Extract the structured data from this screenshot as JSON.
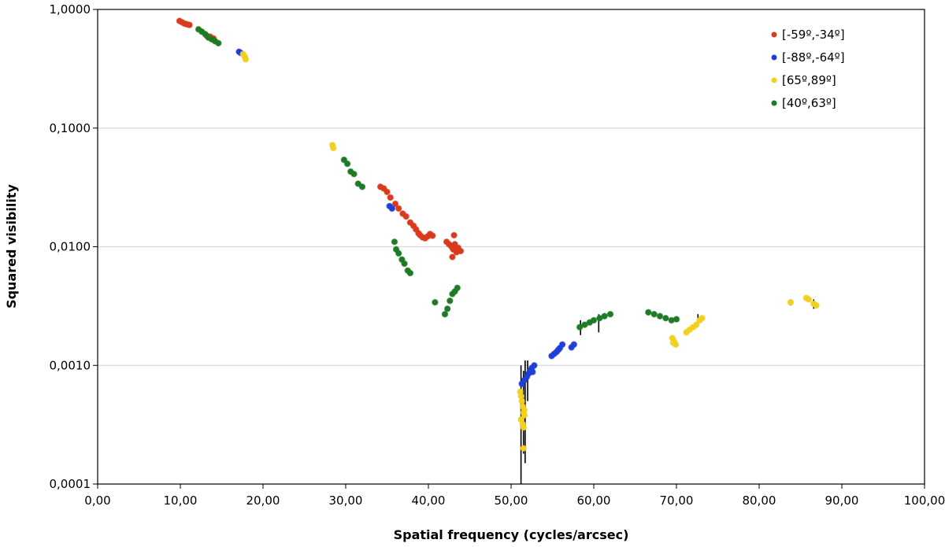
{
  "chart_data": {
    "type": "scatter",
    "title": "",
    "xlabel": "Spatial frequency (cycles/arcsec)",
    "ylabel": "Squared visibility",
    "xlim": [
      0,
      100
    ],
    "ylim": [
      0.0001,
      1
    ],
    "yscale": "log",
    "grid": "horizontal",
    "legend_position": "top-right",
    "x_tick_labels": [
      "0,00",
      "10,00",
      "20,00",
      "30,00",
      "40,00",
      "50,00",
      "60,00",
      "70,00",
      "80,00",
      "90,00",
      "100,00"
    ],
    "y_tick_labels": [
      "1,0000",
      "0,1000",
      "0,0100",
      "0,0010",
      "0,0001"
    ],
    "series": [
      {
        "name": "[-59º,-34º]",
        "color": "#d93a1e",
        "points": [
          [
            9.9,
            0.8
          ],
          [
            10.2,
            0.78
          ],
          [
            10.5,
            0.76
          ],
          [
            10.8,
            0.75
          ],
          [
            11.1,
            0.74
          ],
          [
            13.2,
            0.6
          ],
          [
            13.6,
            0.59
          ],
          [
            14.0,
            0.57
          ],
          [
            34.2,
            0.032
          ],
          [
            34.6,
            0.031
          ],
          [
            35.0,
            0.029
          ],
          [
            35.4,
            0.026
          ],
          [
            36.0,
            0.023
          ],
          [
            36.4,
            0.021
          ],
          [
            36.9,
            0.019
          ],
          [
            37.3,
            0.018
          ],
          [
            37.8,
            0.016
          ],
          [
            38.2,
            0.015
          ],
          [
            38.5,
            0.014
          ],
          [
            38.8,
            0.013
          ],
          [
            39.0,
            0.0125
          ],
          [
            39.3,
            0.012
          ],
          [
            39.6,
            0.0118
          ],
          [
            39.9,
            0.0122
          ],
          [
            40.2,
            0.0128
          ],
          [
            40.5,
            0.0124
          ],
          [
            42.2,
            0.011
          ],
          [
            42.5,
            0.0105
          ],
          [
            42.8,
            0.01
          ],
          [
            43.0,
            0.0095
          ],
          [
            43.2,
            0.0105
          ],
          [
            43.4,
            0.009
          ],
          [
            43.6,
            0.0098
          ],
          [
            43.9,
            0.0092
          ],
          [
            43.1,
            0.0125
          ],
          [
            42.9,
            0.0082
          ]
        ]
      },
      {
        "name": "[-88º,-64º]",
        "color": "#1f3fd6",
        "points": [
          [
            17.1,
            0.44
          ],
          [
            17.3,
            0.43
          ],
          [
            35.3,
            0.022
          ],
          [
            35.6,
            0.021
          ],
          [
            51.3,
            0.0007
          ],
          [
            51.6,
            0.00075
          ],
          [
            51.9,
            0.0008
          ],
          [
            52.1,
            0.00085
          ],
          [
            52.3,
            0.0009
          ],
          [
            52.5,
            0.00095
          ],
          [
            52.8,
            0.001
          ],
          [
            52.6,
            0.00088
          ],
          [
            54.9,
            0.0012
          ],
          [
            55.2,
            0.00125
          ],
          [
            55.5,
            0.0013
          ],
          [
            55.9,
            0.0014
          ],
          [
            56.2,
            0.0015
          ],
          [
            55.7,
            0.00135
          ],
          [
            57.3,
            0.00142
          ],
          [
            57.6,
            0.0015
          ]
        ]
      },
      {
        "name": "[65º,89º]",
        "color": "#f0d020",
        "points": [
          [
            17.6,
            0.42
          ],
          [
            17.8,
            0.4
          ],
          [
            17.9,
            0.38
          ],
          [
            28.4,
            0.072
          ],
          [
            28.5,
            0.068
          ],
          [
            51.1,
            0.0006
          ],
          [
            51.2,
            0.00055
          ],
          [
            51.3,
            0.0005
          ],
          [
            51.4,
            0.00045
          ],
          [
            51.5,
            0.0004
          ],
          [
            51.6,
            0.00038
          ],
          [
            51.2,
            0.00035
          ],
          [
            51.5,
            0.0003
          ],
          [
            51.4,
            0.00032
          ],
          [
            51.6,
            0.00042
          ],
          [
            51.5,
            0.0002
          ],
          [
            69.5,
            0.0017
          ],
          [
            69.7,
            0.0016
          ],
          [
            69.9,
            0.0015
          ],
          [
            69.6,
            0.00155
          ],
          [
            71.2,
            0.0019
          ],
          [
            71.6,
            0.002
          ],
          [
            72.0,
            0.0021
          ],
          [
            72.4,
            0.0022
          ],
          [
            72.8,
            0.0024
          ],
          [
            73.1,
            0.0025
          ],
          [
            83.8,
            0.0034
          ],
          [
            85.7,
            0.0037
          ],
          [
            86.0,
            0.0036
          ],
          [
            86.6,
            0.0033
          ],
          [
            86.9,
            0.0032
          ]
        ]
      },
      {
        "name": "[40º,63º]",
        "color": "#1e7a25",
        "points": [
          [
            12.2,
            0.68
          ],
          [
            12.6,
            0.65
          ],
          [
            13.0,
            0.62
          ],
          [
            13.4,
            0.58
          ],
          [
            13.8,
            0.56
          ],
          [
            14.2,
            0.54
          ],
          [
            14.6,
            0.52
          ],
          [
            29.8,
            0.054
          ],
          [
            30.2,
            0.05
          ],
          [
            30.6,
            0.043
          ],
          [
            31.0,
            0.041
          ],
          [
            31.5,
            0.034
          ],
          [
            32.0,
            0.032
          ],
          [
            35.9,
            0.011
          ],
          [
            36.1,
            0.0095
          ],
          [
            36.4,
            0.0088
          ],
          [
            36.8,
            0.0078
          ],
          [
            37.1,
            0.0072
          ],
          [
            37.5,
            0.0063
          ],
          [
            37.8,
            0.006
          ],
          [
            40.8,
            0.0034
          ],
          [
            42.0,
            0.0027
          ],
          [
            42.3,
            0.003
          ],
          [
            42.6,
            0.0035
          ],
          [
            42.9,
            0.004
          ],
          [
            43.2,
            0.0042
          ],
          [
            43.5,
            0.0045
          ],
          [
            58.3,
            0.0021
          ],
          [
            58.9,
            0.0022
          ],
          [
            59.5,
            0.0023
          ],
          [
            60.0,
            0.0024
          ],
          [
            60.7,
            0.0025
          ],
          [
            61.3,
            0.0026
          ],
          [
            62.0,
            0.0027
          ],
          [
            66.6,
            0.0028
          ],
          [
            67.3,
            0.0027
          ],
          [
            68.0,
            0.0026
          ],
          [
            68.7,
            0.0025
          ],
          [
            69.4,
            0.0024
          ],
          [
            70.0,
            0.00245
          ]
        ]
      }
    ],
    "error_bars": [
      [
        51.2,
        0.0001,
        0.001
      ],
      [
        51.5,
        0.00018,
        0.0009
      ],
      [
        51.7,
        0.00015,
        0.0011
      ],
      [
        52.0,
        0.0005,
        0.0011
      ],
      [
        58.4,
        0.0018,
        0.0024
      ],
      [
        60.6,
        0.0019,
        0.0027
      ],
      [
        72.6,
        0.0022,
        0.0027
      ],
      [
        86.6,
        0.003,
        0.0036
      ],
      [
        83.8,
        0.0032,
        0.0036
      ]
    ]
  }
}
